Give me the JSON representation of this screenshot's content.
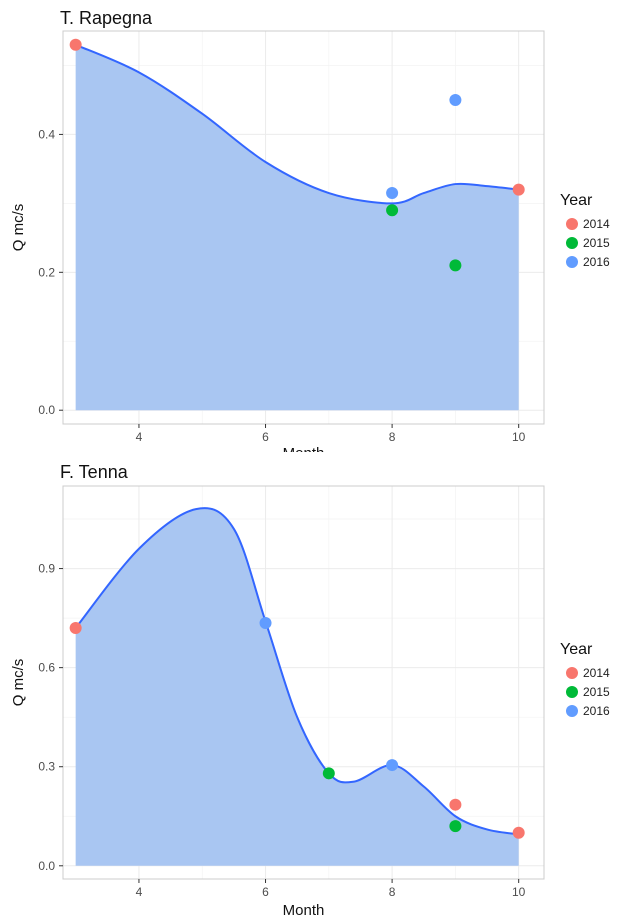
{
  "colors": {
    "area_fill": "#a9c6f2",
    "smooth_line": "#3366ff",
    "year_2014": "#f8766d",
    "year_2015": "#00ba38",
    "year_2016": "#619cff",
    "panel_border": "#cccccc",
    "grid": "#ebebeb"
  },
  "chart_data": [
    {
      "type": "scatter",
      "title": "T. Rapegna",
      "xlabel": "Month",
      "ylabel": "Q mc/s",
      "xlim": [
        2.8,
        10.4
      ],
      "ylim": [
        -0.02,
        0.55
      ],
      "xticks": [
        4,
        6,
        8,
        10
      ],
      "yticks": [
        0.0,
        0.2,
        0.4
      ],
      "ytick_labels": [
        "0.0",
        "0.2",
        "0.4"
      ],
      "grid": true,
      "legend": {
        "title": "Year",
        "placement": "right",
        "entries": [
          {
            "label": "2014",
            "color_key": "year_2014"
          },
          {
            "label": "2015",
            "color_key": "year_2015"
          },
          {
            "label": "2016",
            "color_key": "year_2016"
          }
        ]
      },
      "series": [
        {
          "name": "2014",
          "color_key": "year_2014",
          "points": [
            {
              "x": 3,
              "y": 0.53
            },
            {
              "x": 10,
              "y": 0.32
            }
          ]
        },
        {
          "name": "2015",
          "color_key": "year_2015",
          "points": [
            {
              "x": 8,
              "y": 0.29
            },
            {
              "x": 9,
              "y": 0.21
            }
          ]
        },
        {
          "name": "2016",
          "color_key": "year_2016",
          "points": [
            {
              "x": 8,
              "y": 0.315
            },
            {
              "x": 9,
              "y": 0.45
            }
          ]
        }
      ],
      "smooth_curve": [
        {
          "x": 3,
          "y": 0.53
        },
        {
          "x": 4,
          "y": 0.49
        },
        {
          "x": 5,
          "y": 0.43
        },
        {
          "x": 6,
          "y": 0.36
        },
        {
          "x": 7,
          "y": 0.315
        },
        {
          "x": 8,
          "y": 0.3
        },
        {
          "x": 8.5,
          "y": 0.315
        },
        {
          "x": 9,
          "y": 0.328
        },
        {
          "x": 9.5,
          "y": 0.325
        },
        {
          "x": 10,
          "y": 0.32
        }
      ]
    },
    {
      "type": "scatter",
      "title": "F. Tenna",
      "xlabel": "Month",
      "ylabel": "Q mc/s",
      "xlim": [
        2.8,
        10.4
      ],
      "ylim": [
        -0.04,
        1.15
      ],
      "xticks": [
        4,
        6,
        8,
        10
      ],
      "yticks": [
        0.0,
        0.3,
        0.6,
        0.9
      ],
      "ytick_labels": [
        "0.0",
        "0.3",
        "0.6",
        "0.9"
      ],
      "grid": true,
      "legend": {
        "title": "Year",
        "placement": "right",
        "entries": [
          {
            "label": "2014",
            "color_key": "year_2014"
          },
          {
            "label": "2015",
            "color_key": "year_2015"
          },
          {
            "label": "2016",
            "color_key": "year_2016"
          }
        ]
      },
      "series": [
        {
          "name": "2014",
          "color_key": "year_2014",
          "points": [
            {
              "x": 3,
              "y": 0.72
            },
            {
              "x": 9,
              "y": 0.185
            },
            {
              "x": 10,
              "y": 0.1
            }
          ]
        },
        {
          "name": "2015",
          "color_key": "year_2015",
          "points": [
            {
              "x": 7,
              "y": 0.28
            },
            {
              "x": 9,
              "y": 0.12
            }
          ]
        },
        {
          "name": "2016",
          "color_key": "year_2016",
          "points": [
            {
              "x": 6,
              "y": 0.735
            },
            {
              "x": 8,
              "y": 0.305
            }
          ]
        }
      ],
      "smooth_curve": [
        {
          "x": 3,
          "y": 0.72
        },
        {
          "x": 4,
          "y": 0.96
        },
        {
          "x": 4.9,
          "y": 1.08
        },
        {
          "x": 5.5,
          "y": 1.02
        },
        {
          "x": 6,
          "y": 0.74
        },
        {
          "x": 6.5,
          "y": 0.45
        },
        {
          "x": 7,
          "y": 0.28
        },
        {
          "x": 7.4,
          "y": 0.255
        },
        {
          "x": 8,
          "y": 0.305
        },
        {
          "x": 8.5,
          "y": 0.24
        },
        {
          "x": 9,
          "y": 0.15
        },
        {
          "x": 9.5,
          "y": 0.11
        },
        {
          "x": 10,
          "y": 0.095
        }
      ]
    }
  ]
}
